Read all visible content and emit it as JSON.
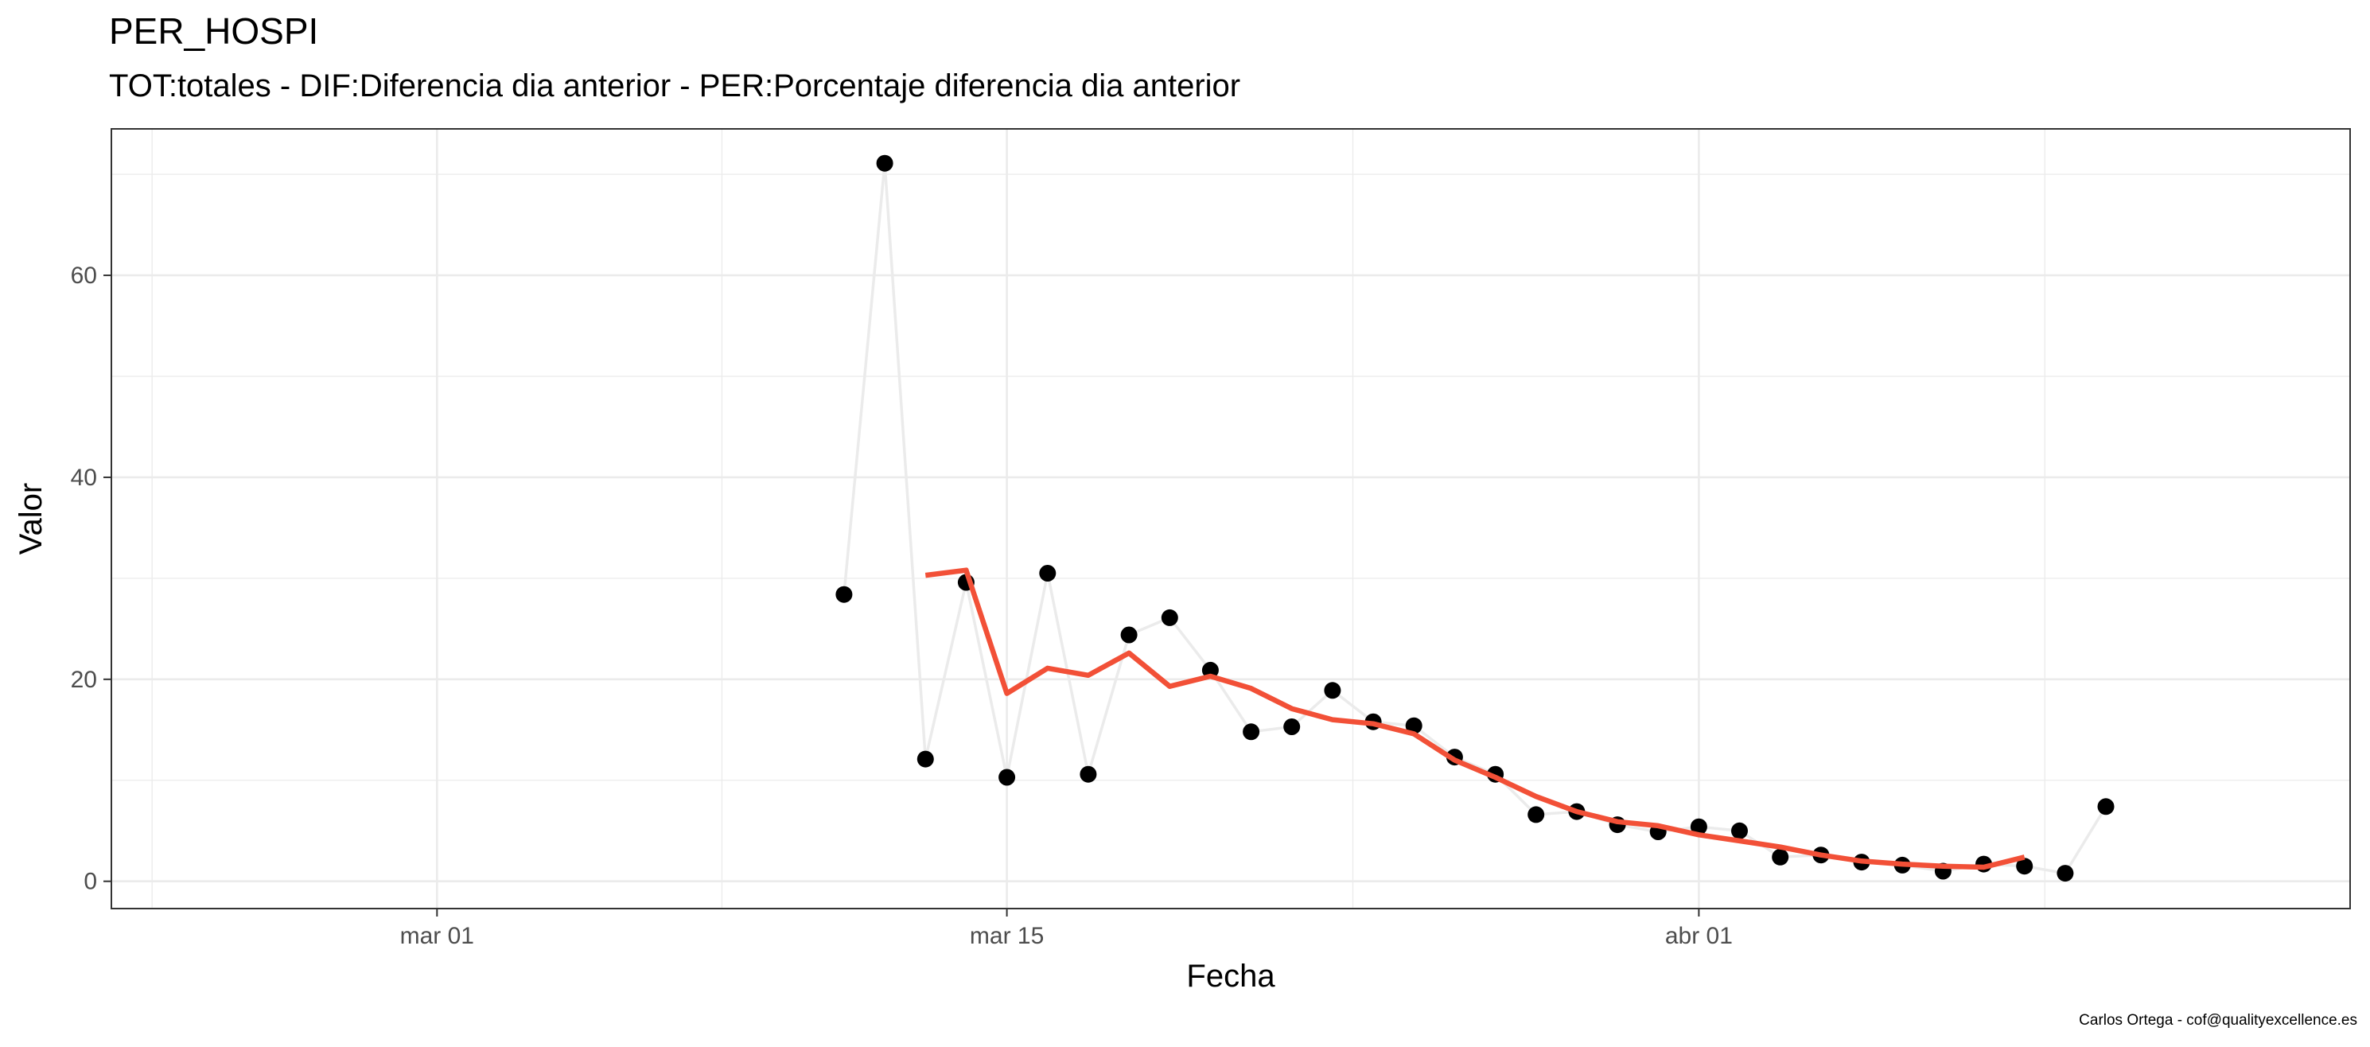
{
  "chart_data": {
    "type": "line",
    "title": "PER_HOSPI",
    "subtitle": "TOT:totales - DIF:Diferencia dia anterior - PER:Porcentaje diferencia dia anterior",
    "xlabel": "Fecha",
    "ylabel": "Valor",
    "caption": "Carlos Ortega - cof@qualityexcellence.es",
    "x_range": [
      "2020-02-22",
      "2020-04-17"
    ],
    "ylim": [
      -2.7,
      74.5
    ],
    "x_ticks": [
      {
        "date": "2020-03-01",
        "label": "mar 01"
      },
      {
        "date": "2020-03-15",
        "label": "mar 15"
      },
      {
        "date": "2020-04-01",
        "label": "abr 01"
      }
    ],
    "y_ticks": [
      0,
      20,
      40,
      60
    ],
    "grid": true,
    "legend": "none",
    "series": [
      {
        "style": "points-and-line",
        "point_color": "#000000",
        "line_color": "#ebebeb",
        "data": [
          [
            "2020-03-11",
            28.4
          ],
          [
            "2020-03-12",
            71.1
          ],
          [
            "2020-03-13",
            12.1
          ],
          [
            "2020-03-14",
            29.6
          ],
          [
            "2020-03-15",
            10.3
          ],
          [
            "2020-03-16",
            30.5
          ],
          [
            "2020-03-17",
            10.6
          ],
          [
            "2020-03-18",
            24.4
          ],
          [
            "2020-03-19",
            26.1
          ],
          [
            "2020-03-20",
            20.9
          ],
          [
            "2020-03-21",
            14.8
          ],
          [
            "2020-03-22",
            15.3
          ],
          [
            "2020-03-23",
            18.9
          ],
          [
            "2020-03-24",
            15.8
          ],
          [
            "2020-03-25",
            15.4
          ],
          [
            "2020-03-26",
            12.3
          ],
          [
            "2020-03-27",
            10.6
          ],
          [
            "2020-03-28",
            6.6
          ],
          [
            "2020-03-29",
            6.9
          ],
          [
            "2020-03-30",
            5.6
          ],
          [
            "2020-03-31",
            4.9
          ],
          [
            "2020-04-01",
            5.4
          ],
          [
            "2020-04-02",
            5.0
          ],
          [
            "2020-04-03",
            2.4
          ],
          [
            "2020-04-04",
            2.6
          ],
          [
            "2020-04-05",
            1.9
          ],
          [
            "2020-04-06",
            1.6
          ],
          [
            "2020-04-07",
            1.0
          ],
          [
            "2020-04-08",
            1.7
          ],
          [
            "2020-04-09",
            1.5
          ],
          [
            "2020-04-10",
            0.8
          ],
          [
            "2020-04-11",
            7.4
          ]
        ]
      },
      {
        "style": "line",
        "line_color": "#f25037",
        "data": [
          [
            "2020-03-13",
            30.3
          ],
          [
            "2020-03-14",
            30.8
          ],
          [
            "2020-03-15",
            18.6
          ],
          [
            "2020-03-16",
            21.1
          ],
          [
            "2020-03-17",
            20.4
          ],
          [
            "2020-03-18",
            22.6
          ],
          [
            "2020-03-19",
            19.3
          ],
          [
            "2020-03-20",
            20.3
          ],
          [
            "2020-03-21",
            19.1
          ],
          [
            "2020-03-22",
            17.1
          ],
          [
            "2020-03-23",
            16.0
          ],
          [
            "2020-03-24",
            15.6
          ],
          [
            "2020-03-25",
            14.6
          ],
          [
            "2020-03-26",
            12.0
          ],
          [
            "2020-03-27",
            10.3
          ],
          [
            "2020-03-28",
            8.4
          ],
          [
            "2020-03-29",
            6.9
          ],
          [
            "2020-03-30",
            5.9
          ],
          [
            "2020-03-31",
            5.5
          ],
          [
            "2020-04-01",
            4.6
          ],
          [
            "2020-04-02",
            4.0
          ],
          [
            "2020-04-03",
            3.4
          ],
          [
            "2020-04-04",
            2.6
          ],
          [
            "2020-04-05",
            2.0
          ],
          [
            "2020-04-06",
            1.7
          ],
          [
            "2020-04-07",
            1.5
          ],
          [
            "2020-04-08",
            1.4
          ],
          [
            "2020-04-09",
            2.4
          ]
        ]
      }
    ]
  }
}
